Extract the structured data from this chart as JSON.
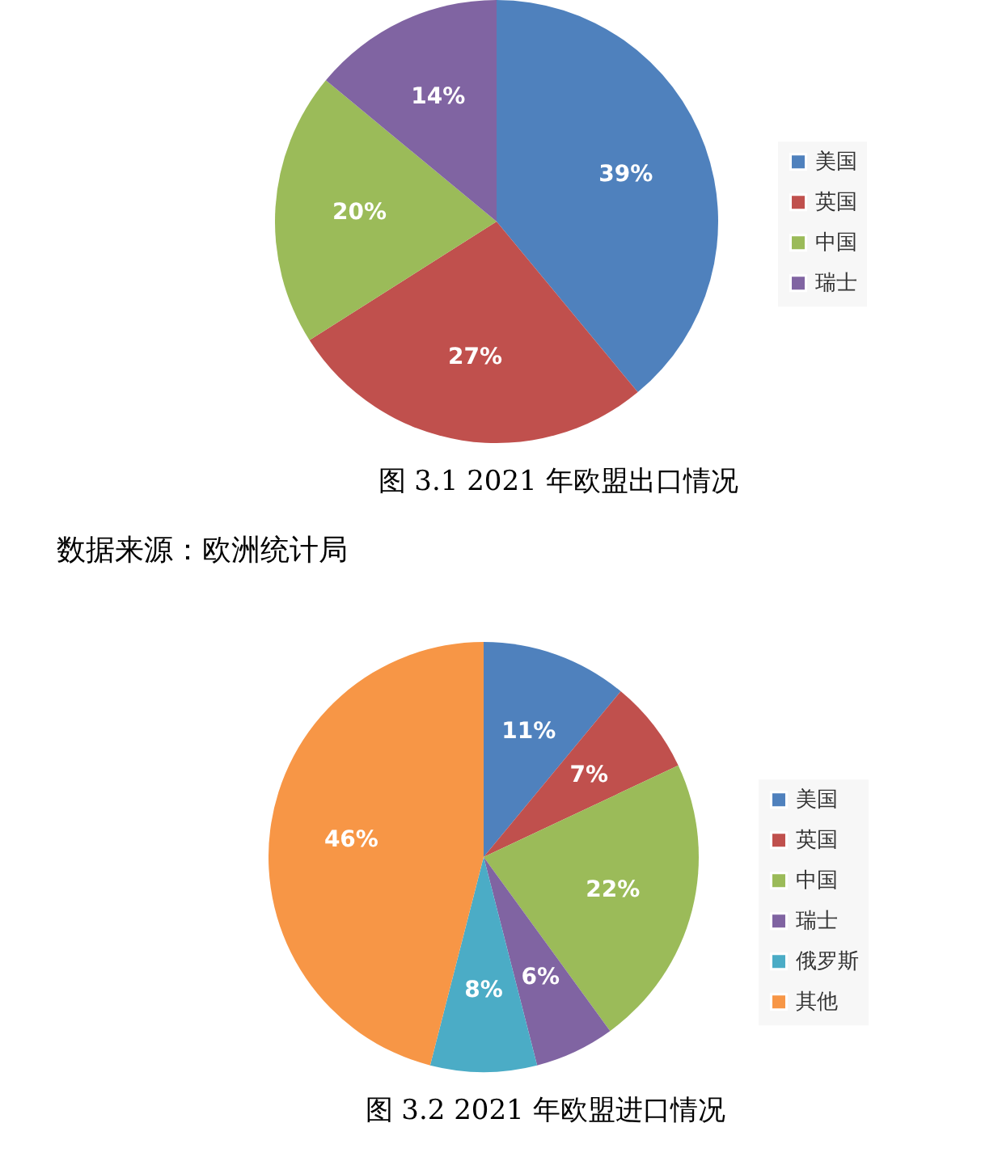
{
  "chart_data": [
    {
      "type": "pie",
      "title": "图 3.1 2021 年欧盟出口情况",
      "categories": [
        "美国",
        "英国",
        "中国",
        "瑞士"
      ],
      "values": [
        39,
        27,
        20,
        14
      ],
      "colors": [
        "#4f81bd",
        "#c0504d",
        "#9bbb59",
        "#8064a2"
      ],
      "value_labels": [
        "39%",
        "27%",
        "20%",
        "14%"
      ],
      "legend": "right",
      "annotations": [
        "数据来源：欧洲统计局"
      ]
    },
    {
      "type": "pie",
      "title": "图 3.2 2021 年欧盟进口情况",
      "categories": [
        "美国",
        "英国",
        "中国",
        "瑞士",
        "俄罗斯",
        "其他"
      ],
      "values": [
        11,
        7,
        22,
        6,
        8,
        46
      ],
      "colors": [
        "#4f81bd",
        "#c0504d",
        "#9bbb59",
        "#8064a2",
        "#4bacc6",
        "#f79646"
      ],
      "value_labels": [
        "11%",
        "7%",
        "22%",
        "6%",
        "8%",
        "46%"
      ],
      "legend": "right"
    }
  ]
}
